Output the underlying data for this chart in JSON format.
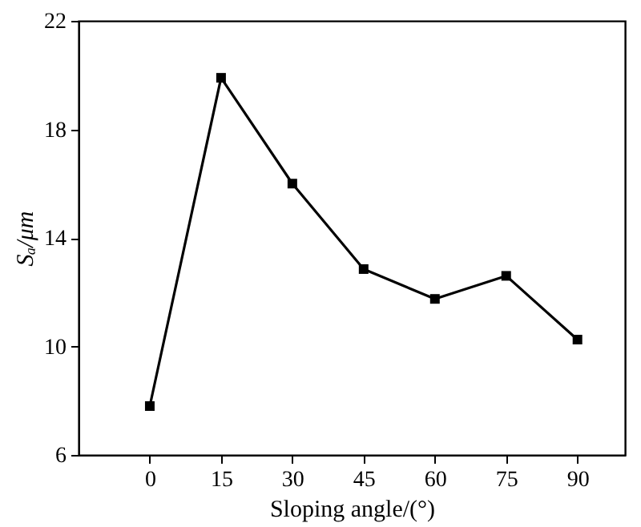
{
  "chart_data": {
    "type": "line",
    "xlabel": "Sloping angle/(°)",
    "ylabel": "Sₐ/μm",
    "x": [
      0,
      15,
      30,
      45,
      60,
      75,
      90
    ],
    "series": [
      {
        "color": "#000000",
        "values": [
          7.8,
          19.9,
          16.0,
          12.85,
          11.75,
          12.6,
          10.25
        ]
      }
    ],
    "xlim": [
      -15,
      100
    ],
    "xticks": [
      0,
      15,
      30,
      45,
      60,
      75,
      90
    ],
    "ylim": [
      6,
      22
    ],
    "yticks": [
      6,
      10,
      14,
      18,
      22
    ],
    "marker": "square",
    "line_style": "solid",
    "grid": false,
    "legend": false
  }
}
